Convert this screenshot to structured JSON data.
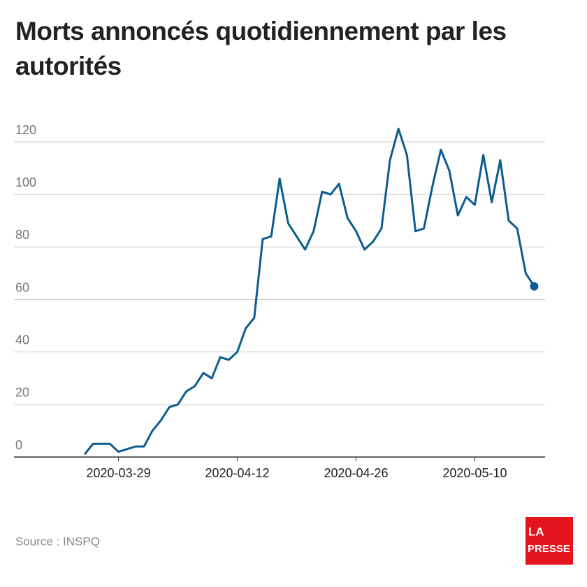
{
  "chart_data": {
    "type": "line",
    "title": "Morts annoncés quotidiennement par les autorités",
    "x": [
      "2020-03-25",
      "2020-03-26",
      "2020-03-27",
      "2020-03-28",
      "2020-03-29",
      "2020-03-30",
      "2020-03-31",
      "2020-04-01",
      "2020-04-02",
      "2020-04-03",
      "2020-04-04",
      "2020-04-05",
      "2020-04-06",
      "2020-04-07",
      "2020-04-08",
      "2020-04-09",
      "2020-04-10",
      "2020-04-11",
      "2020-04-12",
      "2020-04-13",
      "2020-04-14",
      "2020-04-15",
      "2020-04-16",
      "2020-04-17",
      "2020-04-18",
      "2020-04-19",
      "2020-04-20",
      "2020-04-21",
      "2020-04-22",
      "2020-04-23",
      "2020-04-24",
      "2020-04-25",
      "2020-04-26",
      "2020-04-27",
      "2020-04-28",
      "2020-04-29",
      "2020-04-30",
      "2020-05-01",
      "2020-05-02",
      "2020-05-03",
      "2020-05-04",
      "2020-05-05",
      "2020-05-06",
      "2020-05-07",
      "2020-05-08",
      "2020-05-09",
      "2020-05-10",
      "2020-05-11",
      "2020-05-12",
      "2020-05-13",
      "2020-05-14",
      "2020-05-15",
      "2020-05-16",
      "2020-05-17"
    ],
    "series": [
      {
        "name": "Morts",
        "color": "#0d5c8f",
        "values": [
          1,
          5,
          5,
          5,
          2,
          3,
          4,
          4,
          10,
          14,
          19,
          20,
          25,
          27,
          32,
          30,
          38,
          37,
          40,
          49,
          53,
          83,
          84,
          106,
          89,
          84,
          79,
          86,
          101,
          100,
          104,
          91,
          86,
          79,
          82,
          87,
          113,
          125,
          115,
          86,
          87,
          103,
          117,
          109,
          92,
          99,
          96,
          115,
          97,
          113,
          90,
          87,
          70,
          65
        ]
      }
    ],
    "xticks": [
      "2020-03-29",
      "2020-04-12",
      "2020-04-26",
      "2020-05-10"
    ],
    "ylim": [
      0,
      120
    ],
    "yticks": [
      0,
      20,
      40,
      60,
      80,
      100,
      120
    ],
    "grid": true,
    "source": "Source : INSPQ",
    "logo": [
      "LA",
      "PRESSE"
    ]
  }
}
